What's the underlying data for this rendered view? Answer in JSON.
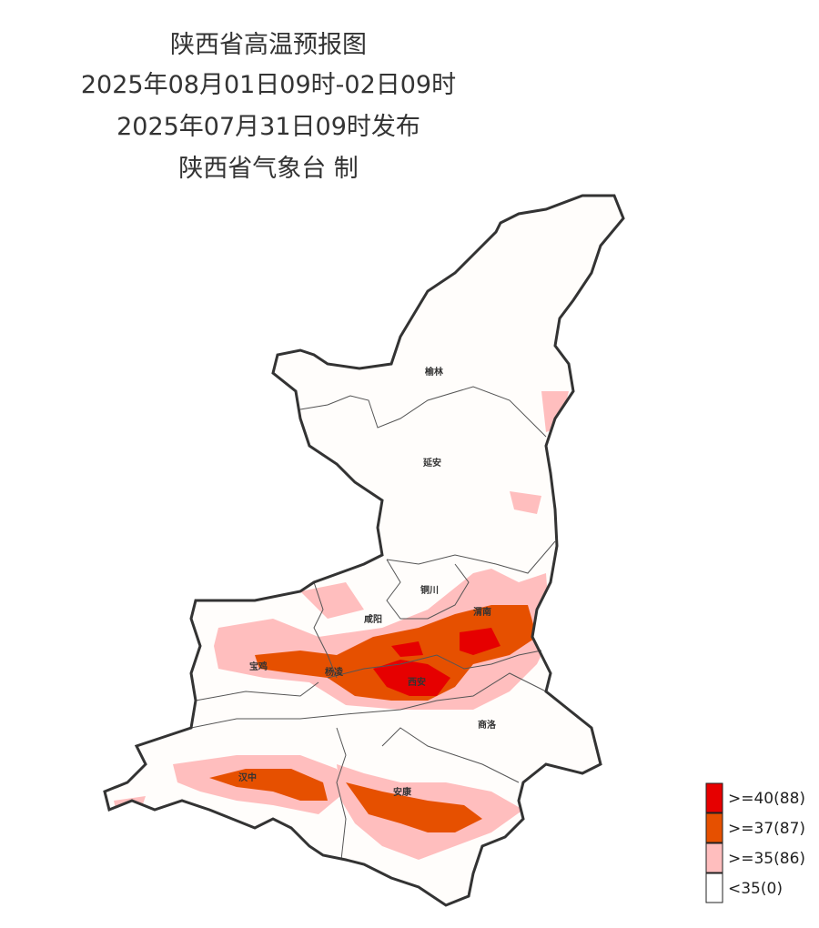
{
  "title": {
    "lines": [
      "陕西省高温预报图",
      "2025年08月01日09时-02日09时",
      "2025年07月31日09时发布",
      "陕西省气象台 制"
    ]
  },
  "cities": [
    {
      "label": "榆林"
    },
    {
      "label": "延安"
    },
    {
      "label": "铜川"
    },
    {
      "label": "咸阳"
    },
    {
      "label": "渭南"
    },
    {
      "label": "宝鸡"
    },
    {
      "label": "杨凌"
    },
    {
      "label": "西安"
    },
    {
      "label": "商洛"
    },
    {
      "label": "汉中"
    },
    {
      "label": "安康"
    }
  ],
  "legend": {
    "items": [
      {
        "label": ">=40(88)",
        "color": "#e60000"
      },
      {
        "label": ">=37(87)",
        "color": "#e65000"
      },
      {
        "label": ">=35(86)",
        "color": "#ffbebe"
      },
      {
        "label": "<35(0)",
        "color": "#ffffff"
      }
    ]
  }
}
